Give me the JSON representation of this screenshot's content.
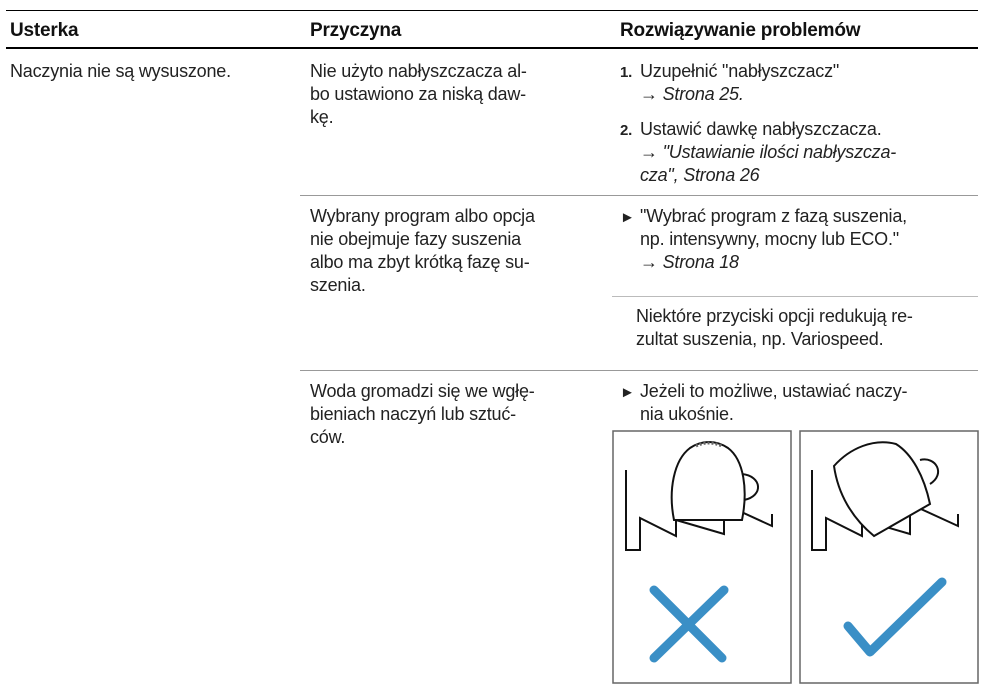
{
  "table": {
    "headers": [
      "Usterka",
      "Przyczyna",
      "Rozwiązywanie problemów"
    ],
    "rows": [
      {
        "fault": [
          "Naczynia nie są wysuszone."
        ],
        "causes": [
          {
            "cause": [
              "Nie użyto nabłyszczacza al-",
              "bo ustawiono za niską daw-",
              "kę."
            ],
            "steps": [
              {
                "marker": "1.",
                "lines": [
                  "Uzupełnić \"nabłyszczacz\""
                ],
                "ref": [
                  "→ Strona 25."
                ]
              },
              {
                "marker": "2.",
                "lines": [
                  "Ustawić dawkę nabłyszczacza."
                ],
                "ref": [
                  "→ \"Ustawianie ilości nabłyszcza-",
                  "cza\", Strona 26"
                ]
              }
            ]
          },
          {
            "cause": [
              "Wybrany program albo opcja",
              "nie obejmuje fazy suszenia",
              "albo ma zbyt krótką fazę su-",
              "szenia."
            ],
            "steps": [
              {
                "marker": "►",
                "lines": [
                  "\"Wybrać program z fazą suszenia,",
                  "np. intensywny, mocny lub ECO.\""
                ],
                "ref": [
                  "→ Strona 18"
                ]
              }
            ],
            "note": [
              "Niektóre przyciski opcji redukują re-",
              "zultat suszenia, np. Variospeed."
            ]
          },
          {
            "cause": [
              "Woda gromadzi się we wgłę-",
              "bieniach naczyń lub sztuć-",
              "ców."
            ],
            "steps": [
              {
                "marker": "►",
                "lines": [
                  "Jeżeli to możliwe, ustawiać naczy-",
                  "nia ukośnie."
                ]
              }
            ]
          }
        ]
      }
    ]
  }
}
